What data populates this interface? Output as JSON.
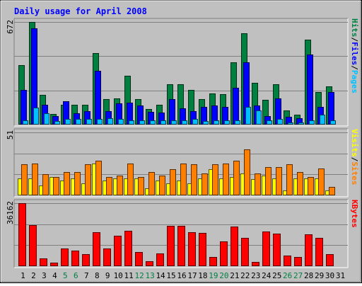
{
  "chart_data": [
    {
      "type": "bar",
      "title": "Daily usage for April 2008",
      "categories": [
        "1",
        "2",
        "3",
        "4",
        "5",
        "6",
        "7",
        "8",
        "9",
        "10",
        "11",
        "12",
        "13",
        "14",
        "15",
        "16",
        "17",
        "18",
        "19",
        "20",
        "21",
        "22",
        "23",
        "24",
        "25",
        "26",
        "27",
        "28",
        "29",
        "30",
        "31"
      ],
      "weekend_days": [
        "5",
        "6",
        "12",
        "13",
        "19",
        "20",
        "26",
        "27"
      ],
      "ylabel_max": "672",
      "ylim": [
        0,
        672
      ],
      "grid": true,
      "right_labels": [
        {
          "text": "Hits",
          "color": "#008040"
        },
        {
          "text": "/",
          "color": "#000000"
        },
        {
          "text": "Files",
          "color": "#0000ff"
        },
        {
          "text": "/",
          "color": "#000000"
        },
        {
          "text": "Pages",
          "color": "#00c0ff"
        }
      ],
      "series": [
        {
          "name": "Hits",
          "color": "#008040",
          "values": [
            390,
            672,
            195,
            70,
            130,
            130,
            130,
            467,
            165,
            170,
            320,
            165,
            100,
            130,
            265,
            265,
            225,
            165,
            205,
            200,
            410,
            600,
            275,
            160,
            265,
            95,
            65,
            555,
            215,
            250,
            0
          ]
        },
        {
          "name": "Files",
          "color": "#0000ff",
          "values": [
            225,
            630,
            130,
            55,
            155,
            75,
            90,
            350,
            90,
            140,
            145,
            125,
            85,
            80,
            165,
            105,
            90,
            115,
            125,
            115,
            240,
            410,
            125,
            55,
            170,
            50,
            40,
            460,
            115,
            215,
            0
          ]
        },
        {
          "name": "Pages",
          "color": "#00c0ff",
          "values": [
            30,
            110,
            75,
            25,
            35,
            35,
            35,
            35,
            40,
            35,
            30,
            30,
            30,
            30,
            30,
            30,
            35,
            25,
            30,
            30,
            30,
            115,
            95,
            30,
            35,
            15,
            15,
            30,
            65,
            30,
            0
          ]
        }
      ]
    },
    {
      "type": "bar",
      "ylabel_max": "51",
      "ylim": [
        0,
        51
      ],
      "grid": true,
      "right_labels": [
        {
          "text": "Visits",
          "color": "#ffff00"
        },
        {
          "text": "/",
          "color": "#000000"
        },
        {
          "text": "Sites",
          "color": "#ff8000"
        }
      ],
      "series": [
        {
          "name": "Visits",
          "color": "#ffff00",
          "values": [
            14,
            14,
            8,
            15,
            12,
            14,
            10,
            26,
            12,
            14,
            14,
            14,
            6,
            12,
            10,
            12,
            10,
            14,
            21,
            14,
            15,
            18,
            13,
            16,
            14,
            4,
            14,
            14,
            14,
            4,
            0
          ]
        },
        {
          "name": "Sites",
          "color": "#ff8000",
          "values": [
            25,
            26,
            17,
            15,
            19,
            19,
            25,
            28,
            15,
            16,
            26,
            15,
            19,
            16,
            21,
            26,
            25,
            18,
            25,
            26,
            28,
            37,
            18,
            23,
            23,
            25,
            19,
            15,
            22,
            7,
            0
          ]
        }
      ]
    },
    {
      "type": "bar",
      "ylabel_max": "36162",
      "ylim": [
        0,
        36162
      ],
      "grid": true,
      "right_labels": [
        {
          "text": "KBytes",
          "color": "#ff0000"
        }
      ],
      "series": [
        {
          "name": "KBytes",
          "color": "#ff0000",
          "values": [
            36162,
            23700,
            4500,
            2000,
            10200,
            8900,
            6800,
            19300,
            10300,
            17600,
            20400,
            8100,
            2800,
            7400,
            23300,
            23300,
            19300,
            19200,
            5200,
            14400,
            22900,
            16300,
            2600,
            20100,
            18800,
            6200,
            5100,
            18300,
            16400,
            6800,
            0
          ]
        }
      ]
    }
  ]
}
